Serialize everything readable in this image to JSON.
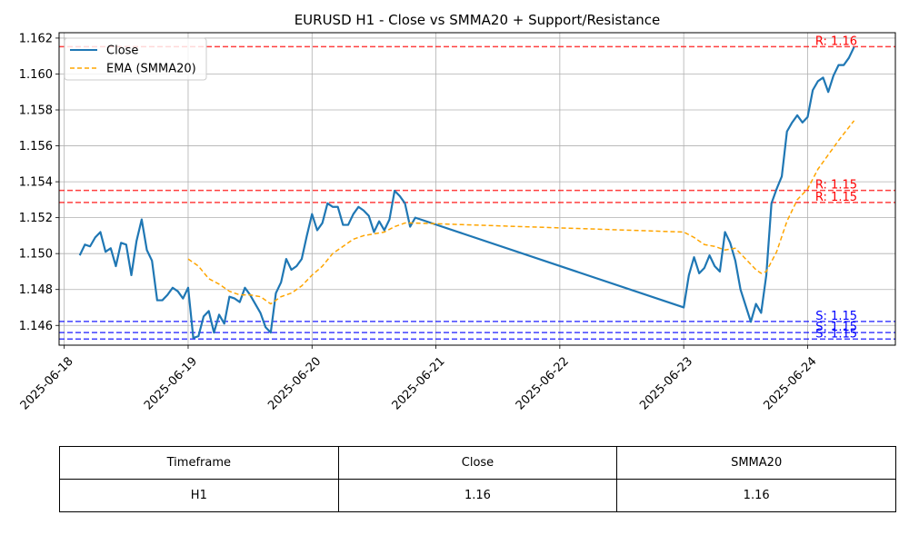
{
  "chart_data": {
    "type": "line",
    "title": "EURUSD H1 - Close vs SMMA20 + Support/Resistance",
    "xlim": [
      "2025-06-17T23:00",
      "2025-06-24T17:00"
    ],
    "ylim": [
      1.1449,
      1.1623
    ],
    "x_ticks": [
      "2025-06-18",
      "2025-06-19",
      "2025-06-20",
      "2025-06-21",
      "2025-06-22",
      "2025-06-23",
      "2025-06-24"
    ],
    "y_ticks": [
      1.146,
      1.148,
      1.15,
      1.152,
      1.154,
      1.156,
      1.158,
      1.16,
      1.162
    ],
    "y_tick_labels": [
      "1.146",
      "1.148",
      "1.150",
      "1.152",
      "1.154",
      "1.156",
      "1.158",
      "1.160",
      "1.162"
    ],
    "grid": true,
    "legend_position": "top-left",
    "series": [
      {
        "name": "Close",
        "color": "#1f77b4",
        "style": "solid",
        "points": [
          [
            "2025-06-18T03:00",
            1.1499
          ],
          [
            "2025-06-18T04:00",
            1.1505
          ],
          [
            "2025-06-18T05:00",
            1.1504
          ],
          [
            "2025-06-18T06:00",
            1.1509
          ],
          [
            "2025-06-18T07:00",
            1.1512
          ],
          [
            "2025-06-18T08:00",
            1.1501
          ],
          [
            "2025-06-18T09:00",
            1.1503
          ],
          [
            "2025-06-18T10:00",
            1.1493
          ],
          [
            "2025-06-18T11:00",
            1.1506
          ],
          [
            "2025-06-18T12:00",
            1.1505
          ],
          [
            "2025-06-18T13:00",
            1.1488
          ],
          [
            "2025-06-18T14:00",
            1.1507
          ],
          [
            "2025-06-18T15:00",
            1.1519
          ],
          [
            "2025-06-18T16:00",
            1.1502
          ],
          [
            "2025-06-18T17:00",
            1.1496
          ],
          [
            "2025-06-18T18:00",
            1.1474
          ],
          [
            "2025-06-18T19:00",
            1.1474
          ],
          [
            "2025-06-18T20:00",
            1.1477
          ],
          [
            "2025-06-18T21:00",
            1.1481
          ],
          [
            "2025-06-18T22:00",
            1.1479
          ],
          [
            "2025-06-18T23:00",
            1.1475
          ],
          [
            "2025-06-19T00:00",
            1.1481
          ],
          [
            "2025-06-19T01:00",
            1.1453
          ],
          [
            "2025-06-19T02:00",
            1.1454
          ],
          [
            "2025-06-19T03:00",
            1.1465
          ],
          [
            "2025-06-19T04:00",
            1.1468
          ],
          [
            "2025-06-19T05:00",
            1.1456
          ],
          [
            "2025-06-19T06:00",
            1.1466
          ],
          [
            "2025-06-19T07:00",
            1.1461
          ],
          [
            "2025-06-19T08:00",
            1.1476
          ],
          [
            "2025-06-19T09:00",
            1.1475
          ],
          [
            "2025-06-19T10:00",
            1.1473
          ],
          [
            "2025-06-19T11:00",
            1.1481
          ],
          [
            "2025-06-19T12:00",
            1.1477
          ],
          [
            "2025-06-19T13:00",
            1.1472
          ],
          [
            "2025-06-19T14:00",
            1.1467
          ],
          [
            "2025-06-19T15:00",
            1.1459
          ],
          [
            "2025-06-19T16:00",
            1.1456
          ],
          [
            "2025-06-19T17:00",
            1.1478
          ],
          [
            "2025-06-19T18:00",
            1.1484
          ],
          [
            "2025-06-19T19:00",
            1.1497
          ],
          [
            "2025-06-19T20:00",
            1.1491
          ],
          [
            "2025-06-19T21:00",
            1.1493
          ],
          [
            "2025-06-19T22:00",
            1.1497
          ],
          [
            "2025-06-19T23:00",
            1.151
          ],
          [
            "2025-06-20T00:00",
            1.1522
          ],
          [
            "2025-06-20T01:00",
            1.1513
          ],
          [
            "2025-06-20T02:00",
            1.1517
          ],
          [
            "2025-06-20T03:00",
            1.1528
          ],
          [
            "2025-06-20T04:00",
            1.1526
          ],
          [
            "2025-06-20T05:00",
            1.1526
          ],
          [
            "2025-06-20T06:00",
            1.1516
          ],
          [
            "2025-06-20T07:00",
            1.1516
          ],
          [
            "2025-06-20T08:00",
            1.1522
          ],
          [
            "2025-06-20T09:00",
            1.1526
          ],
          [
            "2025-06-20T10:00",
            1.1524
          ],
          [
            "2025-06-20T11:00",
            1.1521
          ],
          [
            "2025-06-20T12:00",
            1.1512
          ],
          [
            "2025-06-20T13:00",
            1.1518
          ],
          [
            "2025-06-20T14:00",
            1.1513
          ],
          [
            "2025-06-20T15:00",
            1.1519
          ],
          [
            "2025-06-20T16:00",
            1.1535
          ],
          [
            "2025-06-20T17:00",
            1.1532
          ],
          [
            "2025-06-20T18:00",
            1.1528
          ],
          [
            "2025-06-20T19:00",
            1.1515
          ],
          [
            "2025-06-20T20:00",
            1.152
          ],
          [
            "2025-06-23T00:00",
            1.147
          ],
          [
            "2025-06-23T01:00",
            1.1488
          ],
          [
            "2025-06-23T02:00",
            1.1498
          ],
          [
            "2025-06-23T03:00",
            1.1489
          ],
          [
            "2025-06-23T04:00",
            1.1492
          ],
          [
            "2025-06-23T05:00",
            1.1499
          ],
          [
            "2025-06-23T06:00",
            1.1493
          ],
          [
            "2025-06-23T07:00",
            1.149
          ],
          [
            "2025-06-23T08:00",
            1.1512
          ],
          [
            "2025-06-23T09:00",
            1.1506
          ],
          [
            "2025-06-23T10:00",
            1.1496
          ],
          [
            "2025-06-23T11:00",
            1.148
          ],
          [
            "2025-06-23T12:00",
            1.1471
          ],
          [
            "2025-06-23T13:00",
            1.1462
          ],
          [
            "2025-06-23T14:00",
            1.1472
          ],
          [
            "2025-06-23T15:00",
            1.1467
          ],
          [
            "2025-06-23T16:00",
            1.1488
          ],
          [
            "2025-06-23T17:00",
            1.1528
          ],
          [
            "2025-06-23T18:00",
            1.1536
          ],
          [
            "2025-06-23T19:00",
            1.1543
          ],
          [
            "2025-06-23T20:00",
            1.1568
          ],
          [
            "2025-06-23T21:00",
            1.1573
          ],
          [
            "2025-06-23T22:00",
            1.1577
          ],
          [
            "2025-06-23T23:00",
            1.1573
          ],
          [
            "2025-06-24T00:00",
            1.1576
          ],
          [
            "2025-06-24T01:00",
            1.1591
          ],
          [
            "2025-06-24T02:00",
            1.1596
          ],
          [
            "2025-06-24T03:00",
            1.1598
          ],
          [
            "2025-06-24T04:00",
            1.159
          ],
          [
            "2025-06-24T05:00",
            1.1599
          ],
          [
            "2025-06-24T06:00",
            1.1605
          ],
          [
            "2025-06-24T07:00",
            1.1605
          ],
          [
            "2025-06-24T08:00",
            1.1609
          ],
          [
            "2025-06-24T09:00",
            1.1615
          ]
        ]
      },
      {
        "name": "EMA (SMMA20)",
        "color": "#ffa500",
        "style": "dashed",
        "points": [
          [
            "2025-06-19T00:00",
            1.1497
          ],
          [
            "2025-06-19T02:00",
            1.1493
          ],
          [
            "2025-06-19T04:00",
            1.1486
          ],
          [
            "2025-06-19T06:00",
            1.1483
          ],
          [
            "2025-06-19T08:00",
            1.1479
          ],
          [
            "2025-06-19T10:00",
            1.1477
          ],
          [
            "2025-06-19T12:00",
            1.1477
          ],
          [
            "2025-06-19T14:00",
            1.1476
          ],
          [
            "2025-06-19T16:00",
            1.1472
          ],
          [
            "2025-06-19T18:00",
            1.1476
          ],
          [
            "2025-06-19T20:00",
            1.1478
          ],
          [
            "2025-06-19T22:00",
            1.1482
          ],
          [
            "2025-06-20T00:00",
            1.1488
          ],
          [
            "2025-06-20T02:00",
            1.1493
          ],
          [
            "2025-06-20T04:00",
            1.15
          ],
          [
            "2025-06-20T06:00",
            1.1504
          ],
          [
            "2025-06-20T08:00",
            1.1508
          ],
          [
            "2025-06-20T10:00",
            1.151
          ],
          [
            "2025-06-20T12:00",
            1.1511
          ],
          [
            "2025-06-20T14:00",
            1.1512
          ],
          [
            "2025-06-20T16:00",
            1.1515
          ],
          [
            "2025-06-20T18:00",
            1.1517
          ],
          [
            "2025-06-20T20:00",
            1.1517
          ],
          [
            "2025-06-23T00:00",
            1.1512
          ],
          [
            "2025-06-23T02:00",
            1.1509
          ],
          [
            "2025-06-23T04:00",
            1.1505
          ],
          [
            "2025-06-23T06:00",
            1.1504
          ],
          [
            "2025-06-23T08:00",
            1.1502
          ],
          [
            "2025-06-23T10:00",
            1.1503
          ],
          [
            "2025-06-23T12:00",
            1.1497
          ],
          [
            "2025-06-23T14:00",
            1.1491
          ],
          [
            "2025-06-23T15:00",
            1.1489
          ],
          [
            "2025-06-23T16:00",
            1.149
          ],
          [
            "2025-06-23T18:00",
            1.1501
          ],
          [
            "2025-06-23T20:00",
            1.1518
          ],
          [
            "2025-06-23T22:00",
            1.153
          ],
          [
            "2025-06-24T00:00",
            1.1536
          ],
          [
            "2025-06-24T02:00",
            1.1547
          ],
          [
            "2025-06-24T04:00",
            1.1555
          ],
          [
            "2025-06-24T06:00",
            1.1563
          ],
          [
            "2025-06-24T09:00",
            1.1574
          ]
        ]
      }
    ],
    "levels": [
      {
        "kind": "resistance",
        "value": 1.16152,
        "label": "R: 1.16",
        "color": "#ff0000"
      },
      {
        "kind": "resistance",
        "value": 1.15352,
        "label": "R: 1.15",
        "color": "#ff0000"
      },
      {
        "kind": "resistance",
        "value": 1.15285,
        "label": "R: 1.15",
        "color": "#ff0000"
      },
      {
        "kind": "support",
        "value": 1.14622,
        "label": "S: 1.15",
        "color": "#0000ff"
      },
      {
        "kind": "support",
        "value": 1.1456,
        "label": "S: 1.15",
        "color": "#0000ff"
      },
      {
        "kind": "support",
        "value": 1.14524,
        "label": "S: 1.15",
        "color": "#0000ff"
      }
    ]
  },
  "table": {
    "headers": [
      "Timeframe",
      "Close",
      "SMMA20"
    ],
    "row": [
      "H1",
      "1.16",
      "1.16"
    ]
  }
}
